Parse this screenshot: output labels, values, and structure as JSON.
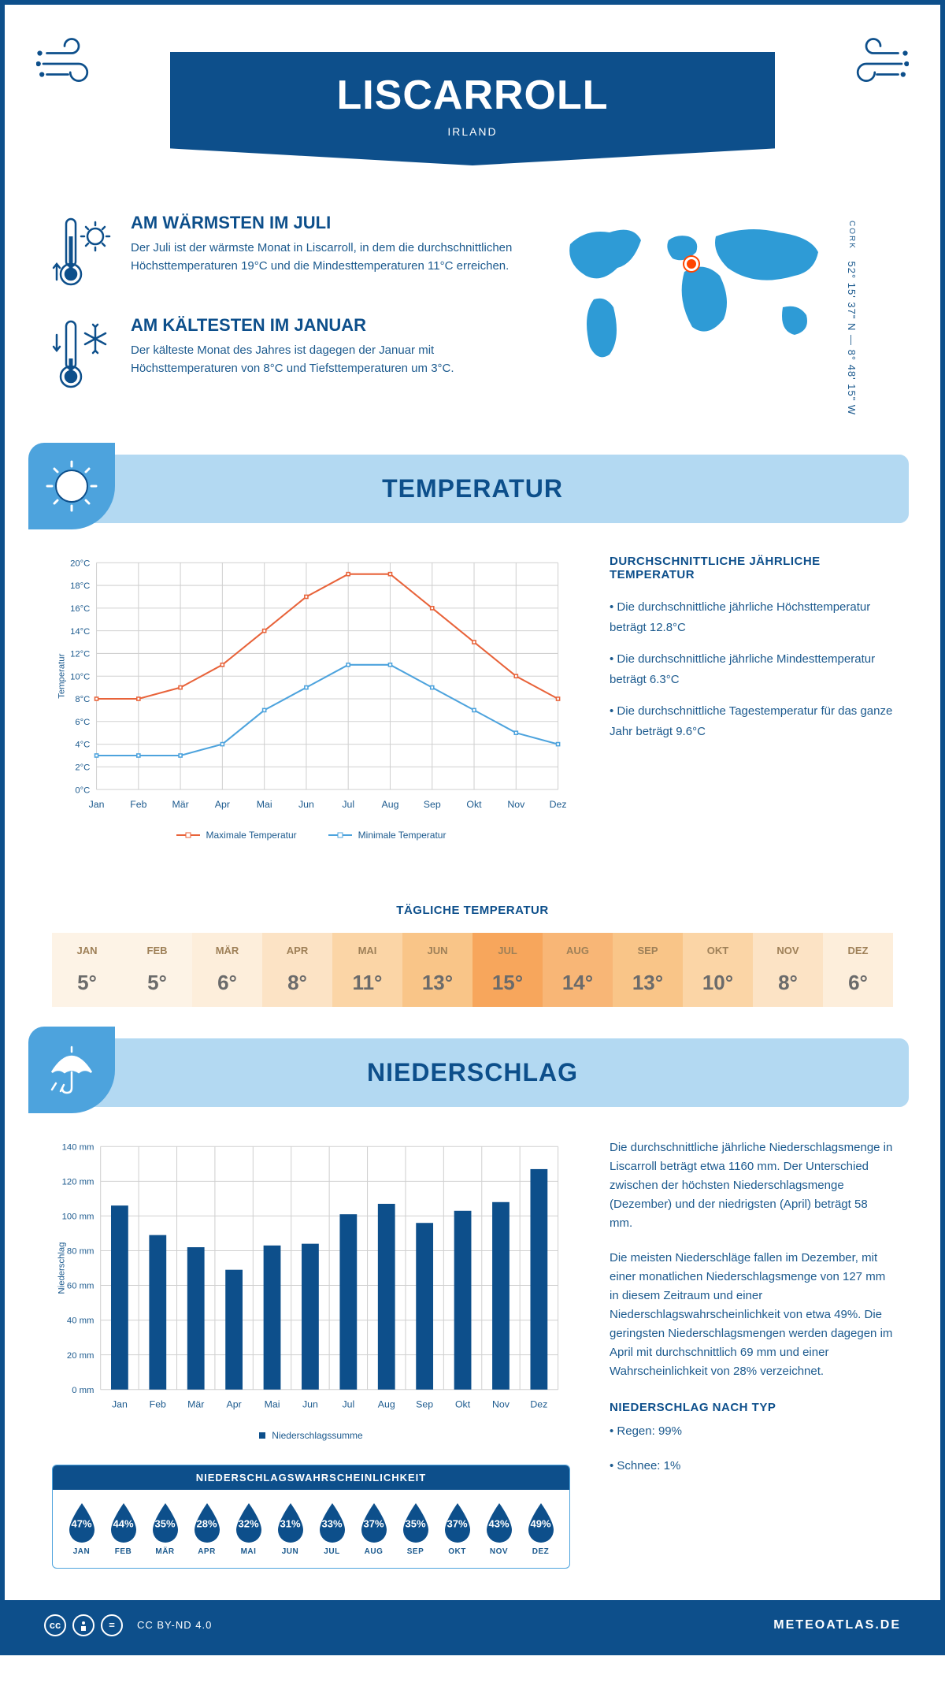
{
  "header": {
    "title": "LISCARROLL",
    "country": "IRLAND"
  },
  "coords": {
    "region": "CORK",
    "lat": "52° 15' 37\" N",
    "lon": "8° 48' 15\" W"
  },
  "map": {
    "marker_left_pct": 46,
    "marker_top_pct": 28,
    "land_color": "#2e9bd6",
    "bg": "#ffffff"
  },
  "warm": {
    "title": "AM WÄRMSTEN IM JULI",
    "text": "Der Juli ist der wärmste Monat in Liscarroll, in dem die durchschnittlichen Höchsttemperaturen 19°C und die Mindesttemperaturen 11°C erreichen."
  },
  "cold": {
    "title": "AM KÄLTESTEN IM JANUAR",
    "text": "Der kälteste Monat des Jahres ist dagegen der Januar mit Höchsttemperaturen von 8°C und Tiefsttemperaturen um 3°C."
  },
  "temp_section": {
    "title": "TEMPERATUR"
  },
  "temp_chart": {
    "type": "line",
    "months": [
      "Jan",
      "Feb",
      "Mär",
      "Apr",
      "Mai",
      "Jun",
      "Jul",
      "Aug",
      "Sep",
      "Okt",
      "Nov",
      "Dez"
    ],
    "ylabel": "Temperatur",
    "ylim": [
      0,
      20
    ],
    "ytick_step": 2,
    "ytick_suffix": "°C",
    "series": [
      {
        "name": "Maximale Temperatur",
        "color": "#e8633a",
        "values": [
          8,
          8,
          9,
          11,
          14,
          17,
          19,
          19,
          16,
          13,
          10,
          8
        ]
      },
      {
        "name": "Minimale Temperatur",
        "color": "#4da3dd",
        "values": [
          3,
          3,
          3,
          4,
          7,
          9,
          11,
          11,
          9,
          7,
          5,
          4
        ]
      }
    ],
    "grid_color": "#d0d0d0",
    "bg": "#ffffff",
    "line_width": 2,
    "marker_size": 4
  },
  "temp_info": {
    "title": "DURCHSCHNITTLICHE JÄHRLICHE TEMPERATUR",
    "bullets": [
      "• Die durchschnittliche jährliche Höchsttemperatur beträgt 12.8°C",
      "• Die durchschnittliche jährliche Mindesttemperatur beträgt 6.3°C",
      "• Die durchschnittliche Tagestemperatur für das ganze Jahr beträgt 9.6°C"
    ]
  },
  "daily_temp": {
    "title": "TÄGLICHE TEMPERATUR",
    "months": [
      "JAN",
      "FEB",
      "MÄR",
      "APR",
      "MAI",
      "JUN",
      "JUL",
      "AUG",
      "SEP",
      "OKT",
      "NOV",
      "DEZ"
    ],
    "values": [
      "5°",
      "5°",
      "6°",
      "8°",
      "11°",
      "13°",
      "15°",
      "14°",
      "13°",
      "10°",
      "8°",
      "6°"
    ],
    "bg_colors": [
      "#fdf3e6",
      "#fdf3e6",
      "#fdeedb",
      "#fce3c5",
      "#fbd5a6",
      "#f9c588",
      "#f7a65c",
      "#f8b676",
      "#f9c588",
      "#fbd5a6",
      "#fce3c5",
      "#fdeedb"
    ]
  },
  "precip_section": {
    "title": "NIEDERSCHLAG"
  },
  "precip_chart": {
    "type": "bar",
    "months": [
      "Jan",
      "Feb",
      "Mär",
      "Apr",
      "Mai",
      "Jun",
      "Jul",
      "Aug",
      "Sep",
      "Okt",
      "Nov",
      "Dez"
    ],
    "ylabel": "Niederschlag",
    "ylim": [
      0,
      140
    ],
    "ytick_step": 20,
    "ytick_suffix": " mm",
    "values": [
      106,
      89,
      82,
      69,
      83,
      84,
      101,
      107,
      96,
      103,
      108,
      127
    ],
    "bar_color": "#0d4f8b",
    "grid_color": "#d0d0d0",
    "bar_width": 0.45,
    "legend": "Niederschlagssumme"
  },
  "precip_text": {
    "p1": "Die durchschnittliche jährliche Niederschlagsmenge in Liscarroll beträgt etwa 1160 mm. Der Unterschied zwischen der höchsten Niederschlagsmenge (Dezember) und der niedrigsten (April) beträgt 58 mm.",
    "p2": "Die meisten Niederschläge fallen im Dezember, mit einer monatlichen Niederschlagsmenge von 127 mm in diesem Zeitraum und einer Niederschlagswahrscheinlichkeit von etwa 49%. Die geringsten Niederschlagsmengen werden dagegen im April mit durchschnittlich 69 mm und einer Wahrscheinlichkeit von 28% verzeichnet.",
    "type_title": "NIEDERSCHLAG NACH TYP",
    "types": [
      "• Regen: 99%",
      "• Schnee: 1%"
    ]
  },
  "prob": {
    "title": "NIEDERSCHLAGSWAHRSCHEINLICHKEIT",
    "months": [
      "JAN",
      "FEB",
      "MÄR",
      "APR",
      "MAI",
      "JUN",
      "JUL",
      "AUG",
      "SEP",
      "OKT",
      "NOV",
      "DEZ"
    ],
    "values": [
      "47%",
      "44%",
      "35%",
      "28%",
      "32%",
      "31%",
      "33%",
      "37%",
      "35%",
      "37%",
      "43%",
      "49%"
    ],
    "drop_color": "#0d4f8b"
  },
  "footer": {
    "license": "CC BY-ND 4.0",
    "site": "METEOATLAS.DE"
  },
  "colors": {
    "primary": "#0d4f8b",
    "light_blue": "#b3d9f2",
    "accent": "#4da3dd",
    "orange": "#e8633a"
  }
}
